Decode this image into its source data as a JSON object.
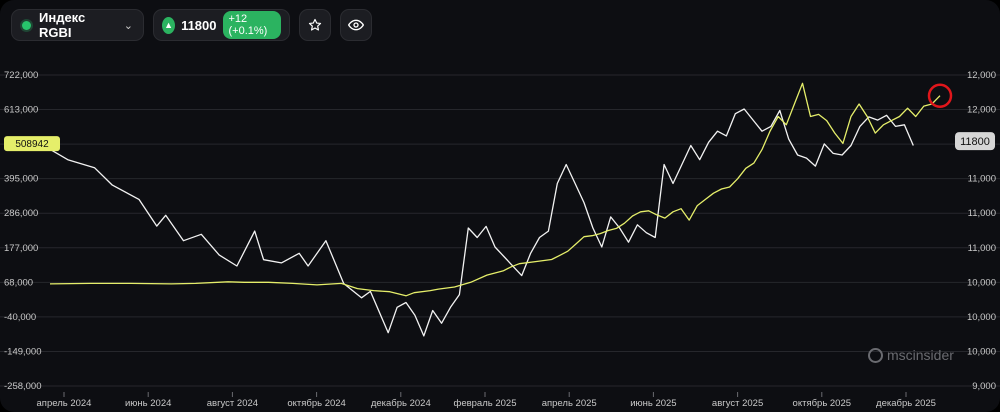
{
  "toolbar": {
    "index_name": "Индекс RGBI",
    "price": "11800",
    "change": "+12 (+0.1%)"
  },
  "icons": {
    "status": "green-dot-icon",
    "dropdown": "chevron-down-icon",
    "trend": "arrow-up-icon",
    "favorite": "star-icon",
    "watch": "eye-icon"
  },
  "logo": {
    "text": "mscinsider"
  },
  "colors": {
    "background": "#0d0e12",
    "white_series": "#f2f2f2",
    "yellow_series": "#e5ee6a",
    "up_green": "#2bb360",
    "highlight_circle": "#e0161b"
  },
  "chart_data": {
    "type": "line",
    "x_ticks": [
      "апрель 2024",
      "июнь 2024",
      "август 2024",
      "октябрь 2024",
      "декабрь 2024",
      "февраль 2025",
      "апрель 2025",
      "июнь 2025",
      "август 2025",
      "октябрь 2025",
      "декабрь 2025"
    ],
    "left_axis": {
      "ticks": [
        "722,000",
        "613,000",
        "508942",
        "395,000",
        "286,000",
        "177,000",
        "68,000",
        "-40,000",
        "-149,000",
        "-258,000"
      ],
      "range": [
        -258000,
        722000
      ],
      "current_value_label": "508942"
    },
    "right_axis": {
      "ticks": [
        "12,000",
        "12,000",
        "11800",
        "11,000",
        "11,000",
        "11,000",
        "10,000",
        "10,000",
        "10,000",
        "9,000"
      ],
      "range": [
        9000,
        12000
      ],
      "current_value_label": "11800"
    },
    "grid": true,
    "series": [
      {
        "color": "white",
        "axis": "left",
        "points": [
          [
            0.0,
            488000
          ],
          [
            0.02,
            455000
          ],
          [
            0.05,
            430000
          ],
          [
            0.07,
            375000
          ],
          [
            0.1,
            330000
          ],
          [
            0.12,
            246000
          ],
          [
            0.13,
            280000
          ],
          [
            0.15,
            200000
          ],
          [
            0.17,
            220000
          ],
          [
            0.19,
            155000
          ],
          [
            0.21,
            120000
          ],
          [
            0.23,
            230000
          ],
          [
            0.24,
            140000
          ],
          [
            0.26,
            130000
          ],
          [
            0.28,
            160000
          ],
          [
            0.29,
            120000
          ],
          [
            0.31,
            200000
          ],
          [
            0.33,
            65000
          ],
          [
            0.35,
            20000
          ],
          [
            0.36,
            40000
          ],
          [
            0.38,
            -90000
          ],
          [
            0.39,
            -10000
          ],
          [
            0.4,
            5000
          ],
          [
            0.41,
            -35000
          ],
          [
            0.42,
            -100000
          ],
          [
            0.43,
            -20000
          ],
          [
            0.44,
            -60000
          ],
          [
            0.45,
            -10000
          ],
          [
            0.46,
            30000
          ],
          [
            0.47,
            240000
          ],
          [
            0.48,
            210000
          ],
          [
            0.49,
            245000
          ],
          [
            0.5,
            180000
          ],
          [
            0.51,
            150000
          ],
          [
            0.53,
            90000
          ],
          [
            0.54,
            160000
          ],
          [
            0.55,
            210000
          ],
          [
            0.56,
            230000
          ],
          [
            0.57,
            380000
          ],
          [
            0.58,
            440000
          ],
          [
            0.59,
            380000
          ],
          [
            0.6,
            320000
          ],
          [
            0.61,
            240000
          ],
          [
            0.62,
            180000
          ],
          [
            0.63,
            275000
          ],
          [
            0.64,
            240000
          ],
          [
            0.65,
            195000
          ],
          [
            0.66,
            250000
          ],
          [
            0.67,
            225000
          ],
          [
            0.68,
            210000
          ],
          [
            0.69,
            440000
          ],
          [
            0.7,
            380000
          ],
          [
            0.72,
            500000
          ],
          [
            0.73,
            455000
          ],
          [
            0.74,
            510000
          ],
          [
            0.75,
            545000
          ],
          [
            0.76,
            530000
          ],
          [
            0.77,
            600000
          ],
          [
            0.78,
            615000
          ],
          [
            0.79,
            580000
          ],
          [
            0.8,
            545000
          ],
          [
            0.81,
            560000
          ],
          [
            0.82,
            610000
          ],
          [
            0.83,
            520000
          ],
          [
            0.84,
            470000
          ],
          [
            0.85,
            460000
          ],
          [
            0.86,
            435000
          ],
          [
            0.87,
            505000
          ],
          [
            0.88,
            475000
          ],
          [
            0.89,
            470000
          ],
          [
            0.9,
            500000
          ],
          [
            0.91,
            560000
          ],
          [
            0.92,
            590000
          ],
          [
            0.93,
            580000
          ],
          [
            0.94,
            595000
          ],
          [
            0.95,
            560000
          ],
          [
            0.96,
            565000
          ],
          [
            0.97,
            500000
          ]
        ]
      },
      {
        "color": "yellow",
        "axis": "right",
        "points": [
          [
            0.0,
            9985
          ],
          [
            0.05,
            9990
          ],
          [
            0.1,
            9990
          ],
          [
            0.15,
            9985
          ],
          [
            0.18,
            9990
          ],
          [
            0.22,
            10005
          ],
          [
            0.24,
            10000
          ],
          [
            0.27,
            10000
          ],
          [
            0.3,
            9990
          ],
          [
            0.33,
            9975
          ],
          [
            0.36,
            9990
          ],
          [
            0.38,
            9940
          ],
          [
            0.4,
            9920
          ],
          [
            0.42,
            9910
          ],
          [
            0.43,
            9890
          ],
          [
            0.44,
            9870
          ],
          [
            0.45,
            9900
          ],
          [
            0.47,
            9920
          ],
          [
            0.48,
            9935
          ],
          [
            0.5,
            9955
          ],
          [
            0.52,
            10000
          ],
          [
            0.54,
            10070
          ],
          [
            0.56,
            10110
          ],
          [
            0.57,
            10150
          ],
          [
            0.58,
            10180
          ],
          [
            0.6,
            10200
          ],
          [
            0.62,
            10220
          ],
          [
            0.63,
            10260
          ],
          [
            0.64,
            10300
          ],
          [
            0.65,
            10370
          ],
          [
            0.66,
            10440
          ],
          [
            0.67,
            10450
          ],
          [
            0.68,
            10470
          ],
          [
            0.69,
            10500
          ],
          [
            0.7,
            10520
          ],
          [
            0.71,
            10570
          ],
          [
            0.72,
            10640
          ],
          [
            0.73,
            10680
          ],
          [
            0.74,
            10690
          ],
          [
            0.75,
            10650
          ],
          [
            0.76,
            10620
          ],
          [
            0.77,
            10680
          ],
          [
            0.78,
            10710
          ],
          [
            0.79,
            10600
          ],
          [
            0.8,
            10740
          ],
          [
            0.81,
            10800
          ],
          [
            0.82,
            10860
          ],
          [
            0.83,
            10900
          ],
          [
            0.84,
            10920
          ],
          [
            0.85,
            11000
          ],
          [
            0.86,
            11100
          ],
          [
            0.87,
            11150
          ],
          [
            0.88,
            11280
          ],
          [
            0.89,
            11460
          ],
          [
            0.9,
            11600
          ],
          [
            0.91,
            11520
          ],
          [
            0.92,
            11720
          ],
          [
            0.93,
            11920
          ],
          [
            0.94,
            11600
          ],
          [
            0.95,
            11620
          ],
          [
            0.96,
            11560
          ],
          [
            0.97,
            11440
          ],
          [
            0.98,
            11340
          ],
          [
            0.99,
            11600
          ],
          [
            1.0,
            11720
          ],
          [
            1.01,
            11600
          ],
          [
            1.02,
            11440
          ],
          [
            1.03,
            11520
          ],
          [
            1.04,
            11560
          ],
          [
            1.05,
            11600
          ],
          [
            1.06,
            11680
          ],
          [
            1.07,
            11600
          ],
          [
            1.08,
            11700
          ],
          [
            1.09,
            11720
          ],
          [
            1.1,
            11800
          ]
        ]
      }
    ]
  }
}
